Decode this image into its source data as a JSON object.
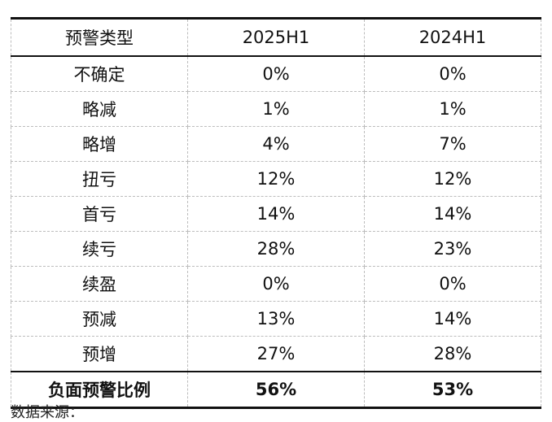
{
  "table": {
    "headers": [
      "预警类型",
      "2025H1",
      "2024H1"
    ],
    "rows": [
      [
        "不确定",
        "0%",
        "0%"
      ],
      [
        "略减",
        "1%",
        "1%"
      ],
      [
        "略增",
        "4%",
        "7%"
      ],
      [
        "扭亏",
        "12%",
        "12%"
      ],
      [
        "首亏",
        "14%",
        "14%"
      ],
      [
        "续亏",
        "28%",
        "23%"
      ],
      [
        "续盈",
        "0%",
        "0%"
      ],
      [
        "预减",
        "13%",
        "14%"
      ],
      [
        "预增",
        "27%",
        "28%"
      ]
    ],
    "summary": [
      "负面预警比例",
      "56%",
      "53%"
    ]
  },
  "footer": {
    "source_text": "数据来源："
  }
}
